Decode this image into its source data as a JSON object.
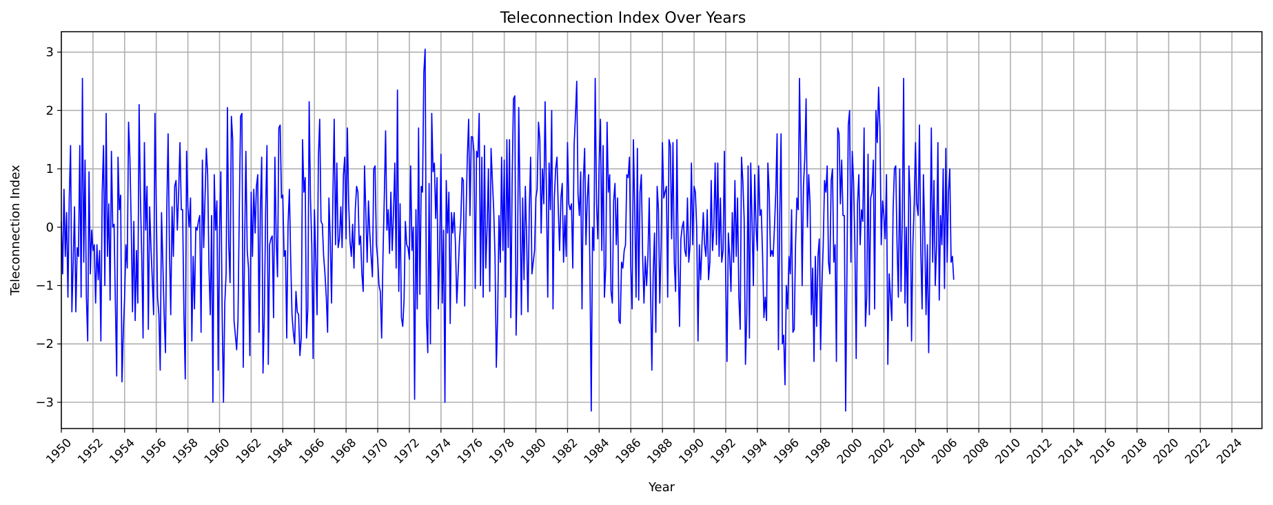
{
  "chart_data": {
    "type": "line",
    "title": "Teleconnection Index Over Years",
    "xlabel": "Year",
    "ylabel": "Teleconnection Index",
    "xlim": [
      1950,
      2025.9
    ],
    "ylim": [
      -3.45,
      3.35
    ],
    "grid": true,
    "line_color": "#0000ff",
    "grid_color": "#b0b0b0",
    "x_ticks": [
      1950,
      1952,
      1954,
      1956,
      1958,
      1960,
      1962,
      1964,
      1966,
      1968,
      1970,
      1972,
      1974,
      1976,
      1978,
      1980,
      1982,
      1984,
      1986,
      1988,
      1990,
      1992,
      1994,
      1996,
      1998,
      2000,
      2002,
      2004,
      2006,
      2008,
      2010,
      2012,
      2014,
      2016,
      2018,
      2020,
      2022,
      2024
    ],
    "x_tick_labels": [
      "1950",
      "1952",
      "1954",
      "1956",
      "1958",
      "1960",
      "1962",
      "1964",
      "1966",
      "1968",
      "1970",
      "1972",
      "1974",
      "1976",
      "1978",
      "1980",
      "1982",
      "1984",
      "1986",
      "1988",
      "1990",
      "1992",
      "1994",
      "1996",
      "1998",
      "2000",
      "2002",
      "2004",
      "2006",
      "2008",
      "2010",
      "2012",
      "2014",
      "2016",
      "2018",
      "2020",
      "2022",
      "2024"
    ],
    "y_ticks": [
      -3,
      -2,
      -1,
      0,
      1,
      2,
      3
    ],
    "y_tick_labels": [
      "−3",
      "−2",
      "−1",
      "0",
      "1",
      "2",
      "3"
    ],
    "series": [
      {
        "name": "Teleconnection Index",
        "frequency": "monthly",
        "start": 1950.0,
        "step": 0.08333,
        "values": [
          0.1,
          -0.8,
          0.65,
          -0.5,
          0.25,
          -1.2,
          0.5,
          1.4,
          -1.45,
          -0.6,
          0.35,
          -1.45,
          -0.35,
          -0.5,
          1.4,
          -1.2,
          2.55,
          -0.6,
          1.15,
          -1.2,
          -1.95,
          0.95,
          -0.8,
          -0.05,
          -0.4,
          -0.3,
          -1.3,
          -0.3,
          -0.9,
          -0.4,
          -1.95,
          0.6,
          1.4,
          -1.0,
          1.95,
          -0.5,
          0.4,
          -1.25,
          1.3,
          0.0,
          0.05,
          -1.3,
          -2.55,
          1.2,
          0.3,
          0.55,
          -2.65,
          -1.8,
          -1.2,
          -0.3,
          -0.7,
          1.8,
          1.2,
          0.05,
          -1.45,
          0.1,
          -1.6,
          -0.4,
          -1.3,
          2.1,
          0.5,
          -0.5,
          -1.9,
          1.45,
          -0.05,
          0.7,
          -1.75,
          0.35,
          -0.35,
          -0.9,
          -1.5,
          1.95,
          0.4,
          -1.2,
          -1.5,
          -2.45,
          0.25,
          -0.6,
          -1.5,
          -2.15,
          0.3,
          1.6,
          -0.35,
          -1.5,
          0.35,
          -0.5,
          0.7,
          0.8,
          -0.05,
          0.6,
          1.45,
          0.3,
          0.3,
          -1.5,
          -2.6,
          1.3,
          0.35,
          0.0,
          0.5,
          -1.95,
          -0.5,
          -1.4,
          0.0,
          -0.05,
          0.1,
          0.2,
          -1.8,
          1.15,
          -0.35,
          0.5,
          1.35,
          0.9,
          -0.7,
          -1.5,
          0.2,
          -3.0,
          0.9,
          -0.05,
          0.45,
          -2.45,
          -0.1,
          0.95,
          -1.5,
          -3.0,
          -1.3,
          -0.8,
          2.05,
          -0.3,
          -0.95,
          1.9,
          1.5,
          -1.6,
          -1.85,
          -2.1,
          -1.6,
          0.3,
          1.9,
          1.95,
          -2.4,
          -0.4,
          1.3,
          -0.4,
          -0.7,
          -2.2,
          0.6,
          -0.5,
          0.65,
          -0.1,
          0.7,
          0.9,
          -1.8,
          0.3,
          1.2,
          -2.5,
          -1.5,
          0.3,
          1.4,
          -2.35,
          -0.3,
          -0.2,
          -0.15,
          -1.55,
          1.2,
          -0.2,
          -0.85,
          1.7,
          1.75,
          0.5,
          0.55,
          -0.5,
          -0.4,
          -1.9,
          0.05,
          0.65,
          -0.55,
          -1.5,
          -1.8,
          -2.0,
          -1.1,
          -1.45,
          -1.5,
          -2.2,
          -1.9,
          1.5,
          0.6,
          0.85,
          -1.9,
          -1.4,
          2.15,
          0.5,
          -0.3,
          -2.25,
          0.3,
          -0.5,
          -1.5,
          1.2,
          1.85,
          0.1,
          0.05,
          -0.5,
          -0.8,
          -1.2,
          -1.8,
          0.5,
          -0.2,
          -1.3,
          0.5,
          1.85,
          -0.3,
          1.1,
          -0.35,
          -0.2,
          0.35,
          -0.35,
          0.9,
          1.2,
          -0.2,
          1.7,
          0.4,
          -0.25,
          -0.5,
          0.05,
          -0.7,
          0.3,
          0.7,
          0.6,
          -0.3,
          -0.15,
          -0.8,
          -1.1,
          1.05,
          0.25,
          -0.6,
          0.45,
          -0.1,
          -0.5,
          -0.85,
          1.0,
          1.05,
          -0.3,
          -0.55,
          -1.0,
          -1.1,
          -1.9,
          -0.5,
          0.5,
          1.65,
          -0.05,
          0.3,
          -0.45,
          0.6,
          -0.4,
          0.25,
          1.1,
          -0.7,
          2.35,
          -1.1,
          0.4,
          -1.55,
          -1.7,
          -1.25,
          0.1,
          -0.3,
          -0.35,
          -0.55,
          1.05,
          -0.4,
          0.0,
          -2.95,
          0.3,
          -1.4,
          1.7,
          -1.15,
          0.7,
          0.6,
          2.65,
          3.05,
          -1.55,
          -2.15,
          0.75,
          -2.0,
          1.95,
          0.95,
          1.1,
          0.15,
          0.85,
          -1.4,
          -0.4,
          1.25,
          -1.3,
          -0.05,
          -3.0,
          0.8,
          -0.1,
          0.6,
          -1.65,
          0.25,
          -0.1,
          0.25,
          -0.3,
          -1.3,
          -0.8,
          -0.25,
          0.1,
          0.85,
          0.8,
          -1.35,
          0.2,
          1.2,
          1.85,
          0.2,
          1.55,
          1.55,
          1.3,
          -1.05,
          1.3,
          1.2,
          1.95,
          -1.0,
          1.2,
          -1.2,
          1.4,
          -0.7,
          0.0,
          1.0,
          -1.1,
          1.35,
          0.8,
          0.3,
          -0.5,
          -2.4,
          -1.5,
          0.2,
          -0.6,
          1.2,
          -0.4,
          1.15,
          -1.2,
          1.5,
          -0.35,
          1.5,
          -1.55,
          0.8,
          2.2,
          2.25,
          -1.85,
          -0.7,
          2.05,
          0.4,
          -1.5,
          0.5,
          -0.9,
          0.7,
          -0.2,
          -1.45,
          0.3,
          1.2,
          -0.8,
          -0.6,
          -0.4,
          0.5,
          0.65,
          1.8,
          1.5,
          -0.1,
          1.0,
          0.4,
          2.15,
          0.6,
          -1.2,
          1.1,
          0.3,
          2.0,
          -1.4,
          0.5,
          1.0,
          1.2,
          0.3,
          -0.4,
          0.5,
          0.75,
          -0.6,
          0.2,
          -0.5,
          1.45,
          0.4,
          0.3,
          0.4,
          -0.7,
          1.4,
          1.9,
          2.5,
          0.55,
          0.2,
          0.95,
          -1.4,
          0.8,
          1.35,
          -0.3,
          0.5,
          0.9,
          -0.7,
          -3.15,
          0.0,
          -0.4,
          2.55,
          0.4,
          -0.2,
          1.1,
          1.85,
          -0.4,
          1.4,
          -1.2,
          -0.7,
          1.8,
          0.6,
          0.9,
          -1.1,
          -1.3,
          0.45,
          0.75,
          -0.3,
          0.5,
          -1.6,
          -1.65,
          -0.6,
          -0.7,
          -0.4,
          -0.3,
          0.9,
          0.85,
          1.2,
          -0.7,
          -1.4,
          1.5,
          0.3,
          -1.2,
          1.35,
          -1.25,
          0.6,
          0.9,
          -0.5,
          -1.3,
          -0.5,
          -1.0,
          -0.5,
          0.5,
          -1.1,
          -2.45,
          -0.8,
          -0.1,
          -1.8,
          0.7,
          0.3,
          -1.3,
          -0.3,
          1.45,
          0.5,
          0.6,
          0.7,
          -1.2,
          1.5,
          1.4,
          -0.2,
          1.45,
          -0.6,
          -1.1,
          1.5,
          -0.6,
          -1.7,
          -0.2,
          0.0,
          0.1,
          -0.4,
          -0.5,
          0.5,
          -0.6,
          -0.3,
          1.1,
          -0.3,
          0.7,
          0.6,
          0.0,
          -1.95,
          -0.3,
          -0.9,
          -0.3,
          0.25,
          -0.3,
          -0.5,
          0.3,
          -0.9,
          -0.6,
          0.8,
          -0.4,
          0.0,
          1.1,
          -0.3,
          1.1,
          -0.5,
          0.5,
          -0.6,
          -0.4,
          1.3,
          -0.8,
          -2.3,
          -0.1,
          -0.5,
          -1.1,
          0.25,
          -0.6,
          0.8,
          -0.5,
          0.5,
          -1.2,
          -1.75,
          1.2,
          0.8,
          0.15,
          -2.35,
          -1.5,
          1.05,
          -1.9,
          1.1,
          0.1,
          -1.0,
          0.9,
          0.0,
          -0.4,
          1.05,
          0.2,
          0.3,
          -0.5,
          -1.55,
          -1.2,
          -1.6,
          1.1,
          0.6,
          -0.5,
          -0.4,
          -0.5,
          0.0,
          0.6,
          1.6,
          -2.1,
          0.2,
          1.6,
          -2.0,
          -1.85,
          -2.7,
          -1.0,
          -1.4,
          -0.5,
          -0.8,
          0.3,
          -1.8,
          -1.75,
          -0.3,
          0.5,
          0.3,
          2.55,
          1.0,
          -1.0,
          0.7,
          1.2,
          2.2,
          0.0,
          0.9,
          0.4,
          -1.5,
          -0.7,
          -2.3,
          -0.5,
          -1.7,
          -0.5,
          -0.2,
          -2.1,
          -1.0,
          -0.3,
          0.8,
          0.6,
          1.05,
          -0.6,
          -0.8,
          0.8,
          1.0,
          -0.6,
          -0.3,
          -2.3,
          1.7,
          1.6,
          0.4,
          1.15,
          0.2,
          0.2,
          -3.15,
          -0.7,
          1.75,
          2.0,
          -0.6,
          1.3,
          0.8,
          -0.3,
          -2.25,
          0.4,
          0.9,
          -0.3,
          0.3,
          0.1,
          1.7,
          -1.7,
          -1.2,
          1.25,
          -1.5,
          0.5,
          0.6,
          1.15,
          -1.4,
          2.0,
          1.45,
          2.4,
          1.7,
          -0.3,
          0.45,
          0.2,
          -0.2,
          0.9,
          -2.35,
          -0.8,
          -1.2,
          -1.6,
          0.3,
          1.0,
          1.05,
          -0.3,
          -1.2,
          1.0,
          -1.1,
          0.2,
          2.55,
          -1.3,
          0.0,
          -1.7,
          1.05,
          0.5,
          -1.95,
          -0.3,
          0.4,
          1.45,
          0.4,
          0.2,
          1.75,
          -0.4,
          -1.4,
          0.9,
          -0.1,
          -1.5,
          -0.3,
          -2.15,
          -0.4,
          1.7,
          -0.6,
          0.8,
          -1.0,
          -0.3,
          1.45,
          -1.25,
          0.2,
          -0.3,
          1.0,
          -1.05,
          1.35,
          -0.6,
          0.6,
          1.0,
          -0.6,
          -0.5,
          -0.9
        ]
      }
    ]
  }
}
